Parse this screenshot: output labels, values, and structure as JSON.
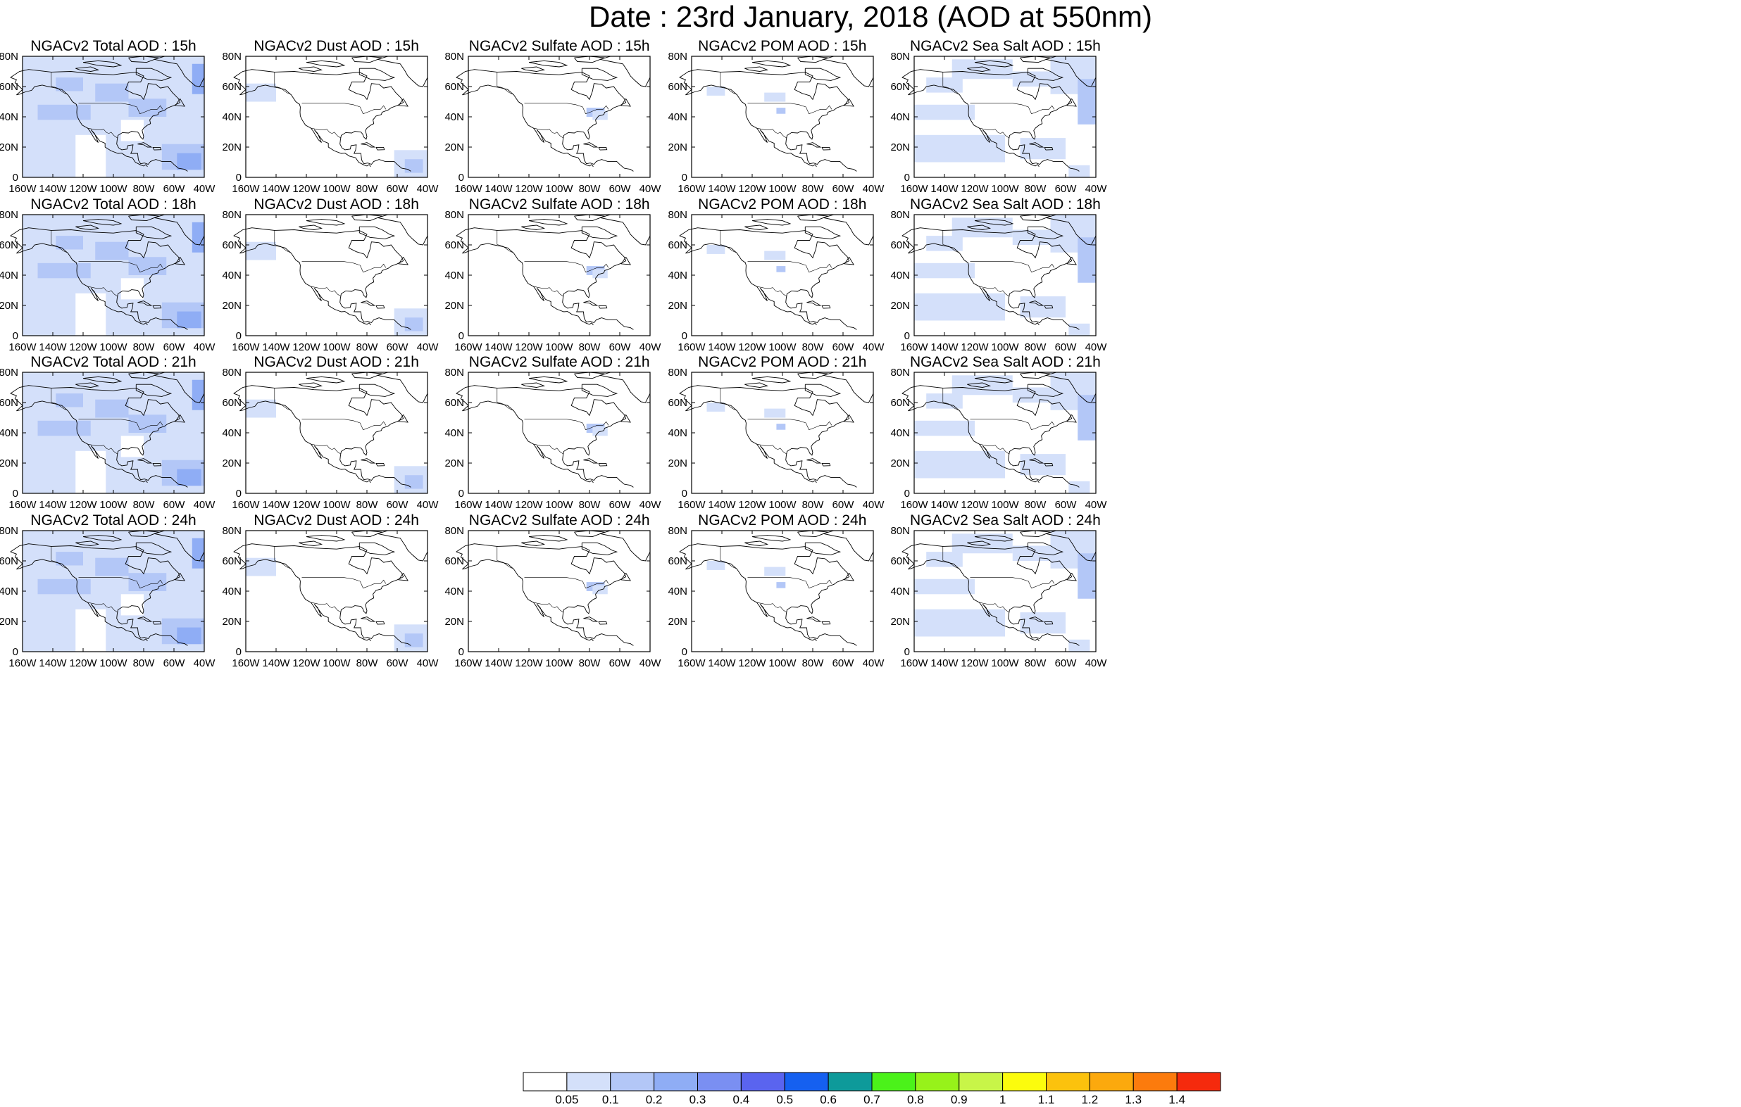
{
  "title": "Date : 23rd January, 2018 (AOD at 550nm)",
  "lon_ticks": [
    "160W",
    "140W",
    "120W",
    "100W",
    "80W",
    "60W",
    "40W"
  ],
  "lat_ticks": [
    "0",
    "20N",
    "40N",
    "60N",
    "80N"
  ],
  "panels": [
    {
      "title": "NGACv2 Total AOD : 15h",
      "species": "total"
    },
    {
      "title": "NGACv2 Dust AOD : 15h",
      "species": "dust"
    },
    {
      "title": "NGACv2 Sulfate AOD : 15h",
      "species": "sulfate"
    },
    {
      "title": "NGACv2 POM AOD : 15h",
      "species": "pom"
    },
    {
      "title": "NGACv2 Sea Salt AOD : 15h",
      "species": "seasalt"
    },
    {
      "title": "NGACv2 Total AOD : 18h",
      "species": "total"
    },
    {
      "title": "NGACv2 Dust AOD : 18h",
      "species": "dust"
    },
    {
      "title": "NGACv2 Sulfate AOD : 18h",
      "species": "sulfate"
    },
    {
      "title": "NGACv2 POM AOD : 18h",
      "species": "pom"
    },
    {
      "title": "NGACv2 Sea Salt AOD : 18h",
      "species": "seasalt"
    },
    {
      "title": "NGACv2 Total AOD : 21h",
      "species": "total"
    },
    {
      "title": "NGACv2 Dust AOD : 21h",
      "species": "dust"
    },
    {
      "title": "NGACv2 Sulfate AOD : 21h",
      "species": "sulfate"
    },
    {
      "title": "NGACv2 POM AOD : 21h",
      "species": "pom"
    },
    {
      "title": "NGACv2 Sea Salt AOD : 21h",
      "species": "seasalt"
    },
    {
      "title": "NGACv2 Total AOD : 24h",
      "species": "total"
    },
    {
      "title": "NGACv2 Dust AOD : 24h",
      "species": "dust"
    },
    {
      "title": "NGACv2 Sulfate AOD : 24h",
      "species": "sulfate"
    },
    {
      "title": "NGACv2 POM AOD : 24h",
      "species": "pom"
    },
    {
      "title": "NGACv2 Sea Salt  AOD : 24h",
      "species": "seasalt"
    }
  ],
  "colorbar": {
    "colors": [
      "#ffffff",
      "#d4e0fa",
      "#b3c7f7",
      "#8fadf5",
      "#7a8ff2",
      "#5a64ef",
      "#1560f0",
      "#0e9a9a",
      "#4bf21a",
      "#97f21a",
      "#c8f548",
      "#fcfc0d",
      "#fcc20d",
      "#fca90d",
      "#fc7b0d",
      "#f52a0d"
    ],
    "labels": [
      "0.05",
      "0.1",
      "0.2",
      "0.3",
      "0.4",
      "0.5",
      "0.6",
      "0.7",
      "0.8",
      "0.9",
      "1",
      "1.1",
      "1.2",
      "1.3",
      "1.4"
    ]
  }
}
